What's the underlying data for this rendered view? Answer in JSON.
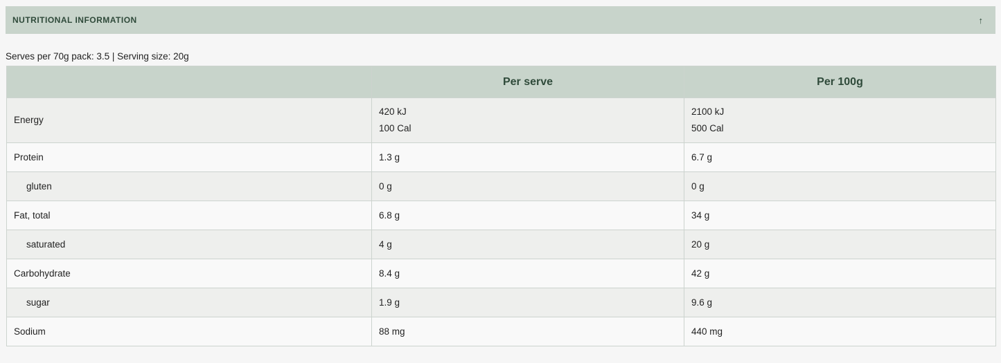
{
  "section": {
    "title": "NUTRITIONAL INFORMATION",
    "toggle_icon": "arrow-up-icon"
  },
  "serving_info": "Serves per 70g pack: 3.5 | Serving size: 20g",
  "table": {
    "headers": [
      "",
      "Per serve",
      "Per 100g"
    ],
    "rows": [
      {
        "name": "Energy",
        "per_serve": [
          "420 kJ",
          "100 Cal"
        ],
        "per_100g": [
          "2100 kJ",
          "500 Cal"
        ]
      },
      {
        "name": "Protein",
        "per_serve": "1.3 g",
        "per_100g": "6.7 g"
      },
      {
        "name": "gluten",
        "per_serve": "0 g",
        "per_100g": "0 g",
        "sub": true
      },
      {
        "name": "Fat, total",
        "per_serve": "6.8 g",
        "per_100g": "34 g"
      },
      {
        "name": "saturated",
        "per_serve": "4 g",
        "per_100g": "20 g",
        "sub": true
      },
      {
        "name": "Carbohydrate",
        "per_serve": "8.4 g",
        "per_100g": "42 g"
      },
      {
        "name": "sugar",
        "per_serve": "1.9 g",
        "per_100g": "9.6 g",
        "sub": true
      },
      {
        "name": "Sodium",
        "per_serve": "88 mg",
        "per_100g": "440 mg"
      }
    ]
  }
}
